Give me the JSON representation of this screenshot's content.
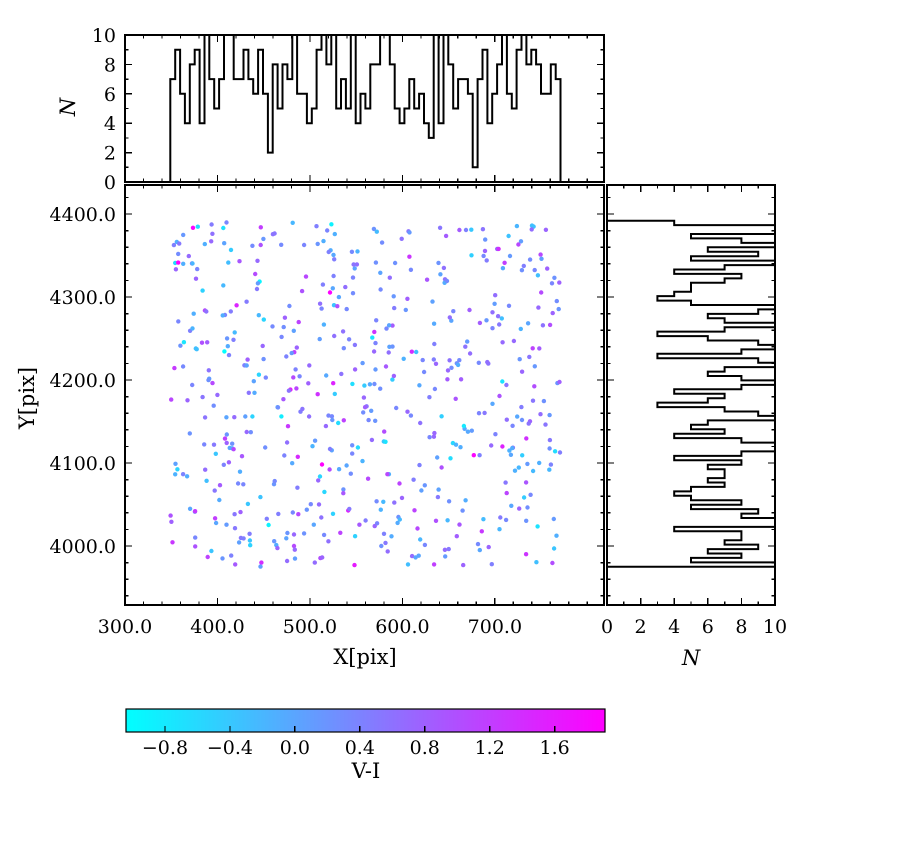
{
  "labels": {
    "x": "X[pix]",
    "y": "Y[pix]",
    "top_n": "N",
    "right_n": "N",
    "cbar": "V-I"
  },
  "chart_data": {
    "type": "scatter",
    "title": "",
    "xlabel": "X[pix]",
    "ylabel": "Y[pix]",
    "grid": false,
    "x_axis": {
      "lim": [
        300,
        818
      ],
      "major_ticks": [
        300,
        400,
        500,
        600,
        700
      ],
      "tick_labels": [
        "300.0",
        "400.0",
        "500.0",
        "600.0",
        "700.0"
      ],
      "minor_step": 20
    },
    "y_axis": {
      "lim": [
        3929,
        4435
      ],
      "major_ticks": [
        4000,
        4100,
        4200,
        4300,
        4400
      ],
      "tick_labels": [
        "4000.0",
        "4100.0",
        "4200.0",
        "4300.0",
        "4400.0"
      ],
      "minor_step": 20
    },
    "marginals": {
      "axis_label": "N",
      "n_lim": [
        0,
        10
      ],
      "n_major_ticks": [
        0,
        2,
        4,
        6,
        8,
        10
      ],
      "n_tick_labels": [
        "0",
        "2",
        "4",
        "6",
        "8",
        "10"
      ],
      "n_minor_step": 1,
      "top_bins": 80,
      "top_range": [
        349,
        771
      ],
      "right_bins": 78,
      "right_range": [
        3975,
        4392
      ]
    },
    "colorbar": {
      "label": "V-I",
      "vmin": -1.04,
      "vmax": 1.91,
      "tick_values": [
        -0.8,
        -0.4,
        0.0,
        0.4,
        0.8,
        1.2,
        1.6
      ],
      "tick_labels": [
        "−0.8",
        "−0.4",
        "0.0",
        "0.4",
        "0.8",
        "1.2",
        "1.6"
      ],
      "cmap_name": "cool",
      "cmap_stops": [
        "#00ffff",
        "#ff00ff"
      ]
    },
    "scatter_points": {
      "n": 570,
      "seed": 11,
      "x_range": [
        349,
        771
      ],
      "y_range": [
        3975,
        4390
      ],
      "vi_mean": 0.38,
      "vi_sd": 0.5,
      "vi_clip": [
        -1.04,
        1.91
      ],
      "marker_radius_px": 2.2
    },
    "styles": {
      "line_color": "#000000",
      "hist_line_width": 2,
      "spine_width": 1.7,
      "tick_color": "#000000",
      "label_color": "#000000",
      "background": "#ffffff"
    }
  }
}
